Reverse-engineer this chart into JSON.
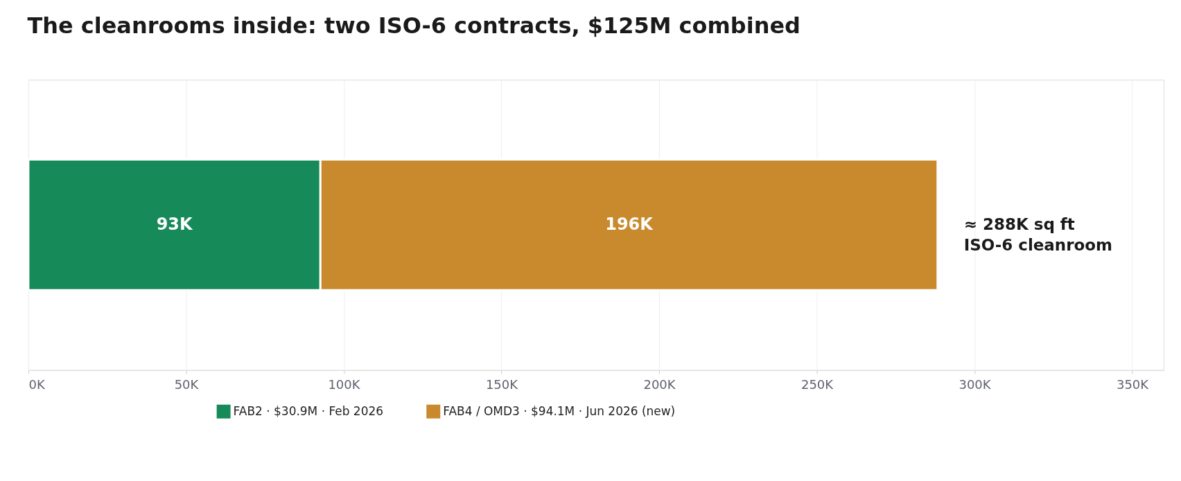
{
  "chart_data": {
    "type": "bar",
    "orientation": "horizontal",
    "stacked": true,
    "title": "The cleanrooms inside: two ISO-6 contracts, $125M combined",
    "categories": [
      null
    ],
    "series": [
      {
        "name": "FAB2  ·  $30.9M  ·  Feb 2026",
        "color": "#178a5a",
        "values": [
          92600
        ],
        "value_labels": [
          "93K"
        ]
      },
      {
        "name": "FAB4 / OMD3  ·  $94.1M  ·  Jun 2026  (new)",
        "color": "#c88a2c",
        "values": [
          195700
        ],
        "value_labels": [
          "196K"
        ]
      }
    ],
    "xlim": [
      0,
      360000
    ],
    "xticks": [
      {
        "value": 0,
        "label": "0K"
      },
      {
        "value": 50000,
        "label": "50K"
      },
      {
        "value": 100000,
        "label": "100K"
      },
      {
        "value": 150000,
        "label": "150K"
      },
      {
        "value": 200000,
        "label": "200K"
      },
      {
        "value": 250000,
        "label": "250K"
      },
      {
        "value": 300000,
        "label": "300K"
      },
      {
        "value": 350000,
        "label": "350K"
      }
    ],
    "annotations": [
      {
        "text": "≈ 288K sq ft\nISO-6 cleanroom",
        "x": 288300
      }
    ],
    "grid": "x",
    "legend": "bottom",
    "tick_labels": "x"
  }
}
